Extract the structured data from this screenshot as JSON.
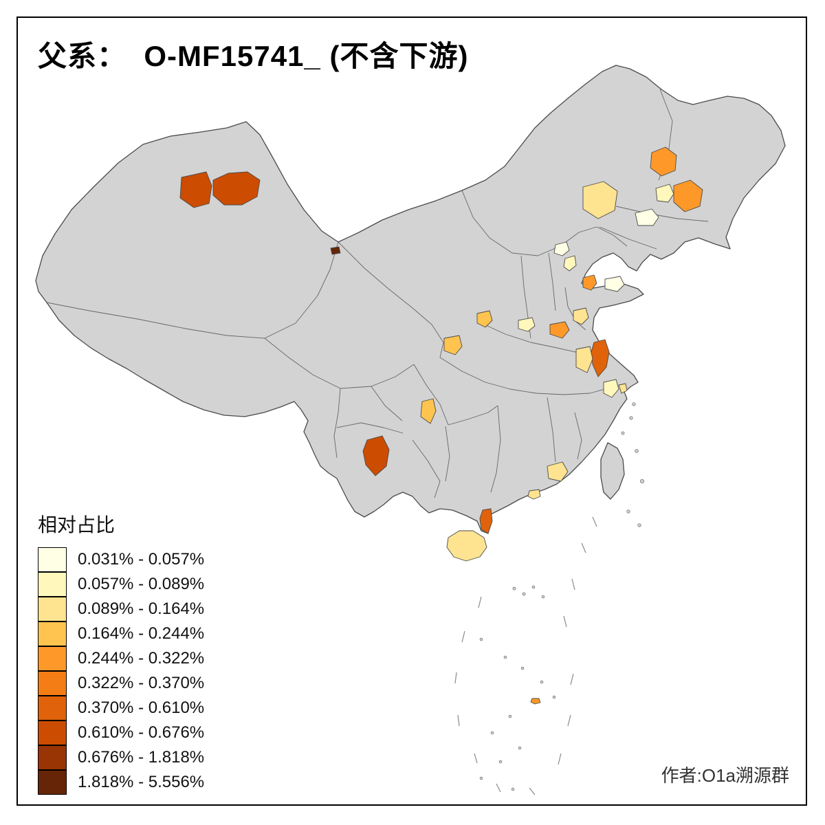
{
  "title": "父系：  O-MF15741_ (不含下游)",
  "attribution": "作者:O1a溯源群",
  "legend": {
    "title": "相对占比",
    "classes": [
      {
        "label": "0.031% - 0.057%",
        "color": "#FFFFE5"
      },
      {
        "label": "0.057% - 0.089%",
        "color": "#FFF7BC"
      },
      {
        "label": "0.089% - 0.164%",
        "color": "#FEE391"
      },
      {
        "label": "0.164% - 0.244%",
        "color": "#FEC44F"
      },
      {
        "label": "0.244% - 0.322%",
        "color": "#FE9929"
      },
      {
        "label": "0.322% - 0.370%",
        "color": "#F57D15"
      },
      {
        "label": "0.370% - 0.610%",
        "color": "#E0620A"
      },
      {
        "label": "0.610% - 0.676%",
        "color": "#CC4C02"
      },
      {
        "label": "0.676% - 1.818%",
        "color": "#993404"
      },
      {
        "label": "1.818% - 5.556%",
        "color": "#662506"
      }
    ]
  },
  "map": {
    "base_fill": "#D3D3D3",
    "border_color": "#4A4A4A",
    "regions": [
      {
        "id": "xinjiang-a",
        "class": 8
      },
      {
        "id": "xinjiang-b",
        "class": 8
      },
      {
        "id": "mongolia-border-dot",
        "class": 10
      },
      {
        "id": "heilongjiang",
        "class": 5
      },
      {
        "id": "neimongol-pale",
        "class": 3
      },
      {
        "id": "jilin",
        "class": 5
      },
      {
        "id": "changchun",
        "class": 2
      },
      {
        "id": "liaoning",
        "class": 1
      },
      {
        "id": "beijing-a",
        "class": 1
      },
      {
        "id": "beijing-b",
        "class": 2
      },
      {
        "id": "shandong-a",
        "class": 5
      },
      {
        "id": "shandong-b",
        "class": 1
      },
      {
        "id": "shanxi",
        "class": 4
      },
      {
        "id": "hebei-s",
        "class": 2
      },
      {
        "id": "henan-a",
        "class": 5
      },
      {
        "id": "henan-b",
        "class": 3
      },
      {
        "id": "jiangsu",
        "class": 7
      },
      {
        "id": "anhui",
        "class": 3
      },
      {
        "id": "shaanxi",
        "class": 4
      },
      {
        "id": "hubei-a",
        "class": 2
      },
      {
        "id": "hubei-b",
        "class": 3
      },
      {
        "id": "chongqing",
        "class": 4
      },
      {
        "id": "yunnan",
        "class": 8
      },
      {
        "id": "guangdong-a",
        "class": 3
      },
      {
        "id": "guangdong-b",
        "class": 3
      },
      {
        "id": "leizhou",
        "class": 7
      },
      {
        "id": "hainan",
        "class": 3
      },
      {
        "id": "south-sea-islet",
        "class": 5
      }
    ]
  }
}
